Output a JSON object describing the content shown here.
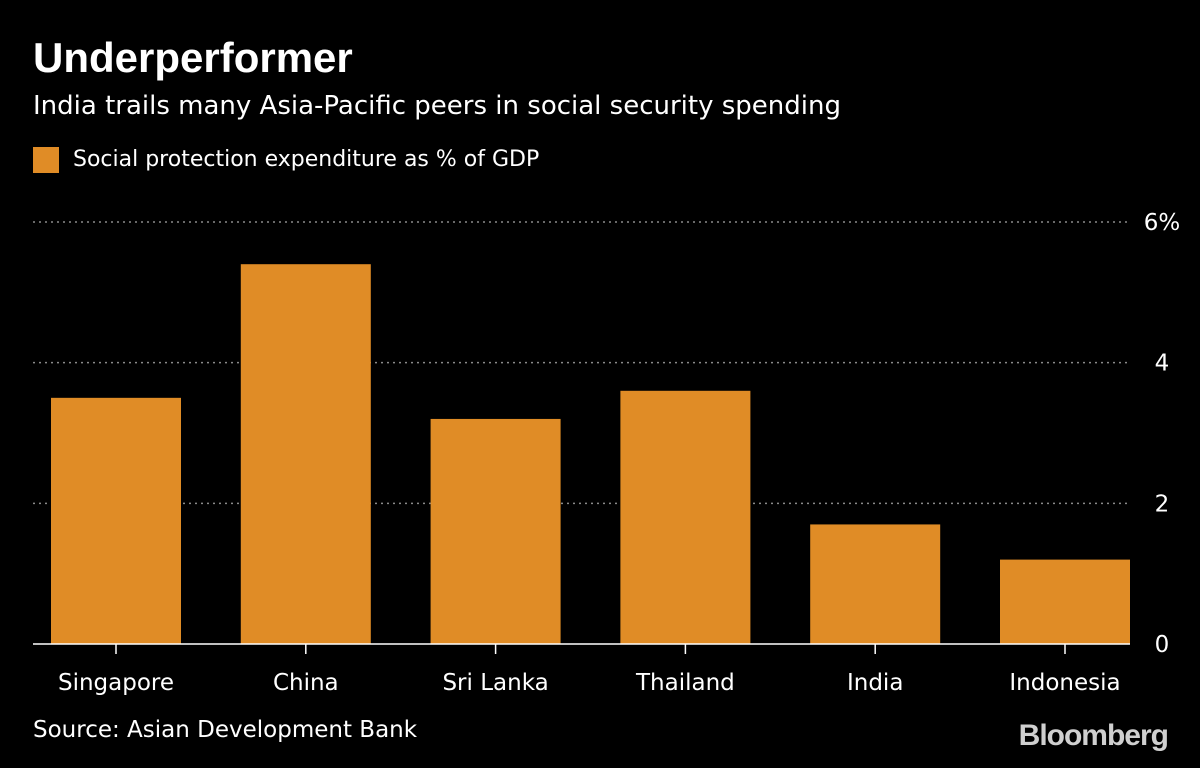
{
  "header": {
    "title": "Underperformer",
    "subtitle": "India trails many Asia-Pacific peers in social security spending"
  },
  "footer": {
    "source": "Source: Asian Development Bank",
    "logo_text": "Bloomberg"
  },
  "colors": {
    "background": "#000000",
    "bar": "#e08c26",
    "grid": "#8a8a8a",
    "text": "#ffffff"
  },
  "chart_data": {
    "type": "bar",
    "categories": [
      "Singapore",
      "China",
      "Sri Lanka",
      "Thailand",
      "India",
      "Indonesia"
    ],
    "series": [
      {
        "name": "Social protection expenditure as % of GDP",
        "values": [
          3.5,
          5.4,
          3.2,
          3.6,
          1.7,
          1.2
        ]
      }
    ],
    "ylim": [
      0,
      6
    ],
    "yticks": [
      0,
      2,
      4,
      6
    ],
    "ytick_labels": [
      "0",
      "2",
      "4",
      "6%"
    ],
    "grid": true,
    "legend_position": "top-left",
    "yaxis_position": "right"
  }
}
